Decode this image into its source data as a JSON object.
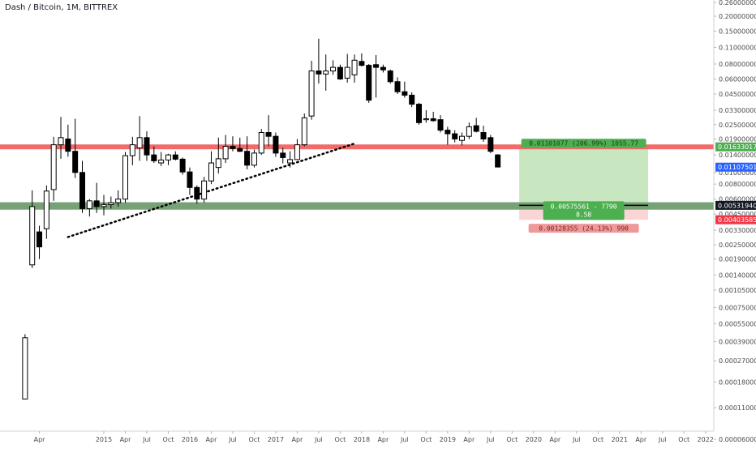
{
  "chart_data": {
    "type": "candlestick",
    "title": "Dash / Bitcoin, 1M, BITTREX",
    "scale": "log",
    "ylim": [
      5.2e-05,
      0.26
    ],
    "y_ticks": [
      "0.26000000",
      "0.20000000",
      "0.15000000",
      "0.11000000",
      "0.08000000",
      "0.06000000",
      "0.04500000",
      "0.03300000",
      "0.02500000",
      "0.01900000",
      "0.01400000",
      "0.01000000",
      "0.00800000",
      "0.00600000",
      "0.00450000",
      "0.00330000",
      "0.00250000",
      "0.00190000",
      "0.00140000",
      "0.00105000",
      "0.00075000",
      "0.00055000",
      "0.00039000",
      "0.00027000",
      "0.00018000",
      "0.00011000",
      "0.00006000"
    ],
    "x_ticks": [
      {
        "label": "Apr",
        "date": "2014-04"
      },
      {
        "label": "2015",
        "date": "2015-01"
      },
      {
        "label": "Apr",
        "date": "2015-04"
      },
      {
        "label": "Jul",
        "date": "2015-07"
      },
      {
        "label": "Oct",
        "date": "2015-10"
      },
      {
        "label": "2016",
        "date": "2016-01"
      },
      {
        "label": "Apr",
        "date": "2016-04"
      },
      {
        "label": "Jul",
        "date": "2016-07"
      },
      {
        "label": "Oct",
        "date": "2016-10"
      },
      {
        "label": "2017",
        "date": "2017-01"
      },
      {
        "label": "Apr",
        "date": "2017-04"
      },
      {
        "label": "Jul",
        "date": "2017-07"
      },
      {
        "label": "Oct",
        "date": "2017-10"
      },
      {
        "label": "2018",
        "date": "2018-01"
      },
      {
        "label": "Apr",
        "date": "2018-04"
      },
      {
        "label": "Jul",
        "date": "2018-07"
      },
      {
        "label": "Oct",
        "date": "2018-10"
      },
      {
        "label": "2019",
        "date": "2019-01"
      },
      {
        "label": "Apr",
        "date": "2019-04"
      },
      {
        "label": "Jul",
        "date": "2019-07"
      },
      {
        "label": "Oct",
        "date": "2019-10"
      },
      {
        "label": "2020",
        "date": "2020-01"
      },
      {
        "label": "Apr",
        "date": "2020-04"
      },
      {
        "label": "Jul",
        "date": "2020-07"
      },
      {
        "label": "Oct",
        "date": "2020-10"
      },
      {
        "label": "2021",
        "date": "2021-01"
      },
      {
        "label": "Apr",
        "date": "2021-04"
      },
      {
        "label": "Jul",
        "date": "2021-07"
      },
      {
        "label": "Oct",
        "date": "2021-10"
      },
      {
        "label": "2022",
        "date": "2022-01"
      }
    ],
    "candles": [
      {
        "date": "2014-02",
        "o": 0.00013,
        "h": 0.00045,
        "l": 0.00013,
        "c": 0.00042
      },
      {
        "date": "2014-03",
        "o": 0.0017,
        "h": 0.0071,
        "l": 0.0016,
        "c": 0.0052
      },
      {
        "date": "2014-04",
        "o": 0.0032,
        "h": 0.0036,
        "l": 0.0019,
        "c": 0.0024
      },
      {
        "date": "2014-05",
        "o": 0.0034,
        "h": 0.0078,
        "l": 0.0028,
        "c": 0.007
      },
      {
        "date": "2014-06",
        "o": 0.0072,
        "h": 0.0198,
        "l": 0.0058,
        "c": 0.017
      },
      {
        "date": "2014-07",
        "o": 0.017,
        "h": 0.029,
        "l": 0.013,
        "c": 0.0195
      },
      {
        "date": "2014-08",
        "o": 0.019,
        "h": 0.025,
        "l": 0.0135,
        "c": 0.015
      },
      {
        "date": "2014-09",
        "o": 0.015,
        "h": 0.028,
        "l": 0.009,
        "c": 0.01
      },
      {
        "date": "2014-10",
        "o": 0.01,
        "h": 0.0125,
        "l": 0.0046,
        "c": 0.005
      },
      {
        "date": "2014-11",
        "o": 0.005,
        "h": 0.006,
        "l": 0.0043,
        "c": 0.0058
      },
      {
        "date": "2014-12",
        "o": 0.0058,
        "h": 0.0082,
        "l": 0.0046,
        "c": 0.0052
      },
      {
        "date": "2015-01",
        "o": 0.0052,
        "h": 0.0065,
        "l": 0.0044,
        "c": 0.0054
      },
      {
        "date": "2015-02",
        "o": 0.0054,
        "h": 0.0063,
        "l": 0.005,
        "c": 0.0056
      },
      {
        "date": "2015-03",
        "o": 0.0056,
        "h": 0.0071,
        "l": 0.0052,
        "c": 0.006
      },
      {
        "date": "2015-04",
        "o": 0.006,
        "h": 0.0148,
        "l": 0.0056,
        "c": 0.0138
      },
      {
        "date": "2015-05",
        "o": 0.0138,
        "h": 0.0198,
        "l": 0.0115,
        "c": 0.017
      },
      {
        "date": "2015-06",
        "o": 0.016,
        "h": 0.0295,
        "l": 0.0125,
        "c": 0.0195
      },
      {
        "date": "2015-07",
        "o": 0.0195,
        "h": 0.022,
        "l": 0.0125,
        "c": 0.014
      },
      {
        "date": "2015-08",
        "o": 0.014,
        "h": 0.0165,
        "l": 0.012,
        "c": 0.0125
      },
      {
        "date": "2015-09",
        "o": 0.012,
        "h": 0.0148,
        "l": 0.0113,
        "c": 0.0127
      },
      {
        "date": "2015-10",
        "o": 0.0127,
        "h": 0.0143,
        "l": 0.0115,
        "c": 0.014
      },
      {
        "date": "2015-11",
        "o": 0.014,
        "h": 0.015,
        "l": 0.0126,
        "c": 0.0129
      },
      {
        "date": "2015-12",
        "o": 0.0129,
        "h": 0.0133,
        "l": 0.0096,
        "c": 0.0101
      },
      {
        "date": "2016-01",
        "o": 0.0101,
        "h": 0.011,
        "l": 0.0065,
        "c": 0.0075
      },
      {
        "date": "2016-02",
        "o": 0.0075,
        "h": 0.0078,
        "l": 0.0055,
        "c": 0.006
      },
      {
        "date": "2016-03",
        "o": 0.006,
        "h": 0.0092,
        "l": 0.0056,
        "c": 0.0085
      },
      {
        "date": "2016-04",
        "o": 0.0085,
        "h": 0.015,
        "l": 0.008,
        "c": 0.012
      },
      {
        "date": "2016-05",
        "o": 0.011,
        "h": 0.0195,
        "l": 0.0098,
        "c": 0.013
      },
      {
        "date": "2016-06",
        "o": 0.013,
        "h": 0.0205,
        "l": 0.012,
        "c": 0.0165
      },
      {
        "date": "2016-07",
        "o": 0.0165,
        "h": 0.02,
        "l": 0.015,
        "c": 0.0158
      },
      {
        "date": "2016-08",
        "o": 0.0158,
        "h": 0.0195,
        "l": 0.0148,
        "c": 0.015
      },
      {
        "date": "2016-09",
        "o": 0.015,
        "h": 0.02,
        "l": 0.0106,
        "c": 0.0115
      },
      {
        "date": "2016-10",
        "o": 0.0115,
        "h": 0.0155,
        "l": 0.011,
        "c": 0.0145
      },
      {
        "date": "2016-11",
        "o": 0.0145,
        "h": 0.023,
        "l": 0.014,
        "c": 0.0215
      },
      {
        "date": "2016-12",
        "o": 0.0215,
        "h": 0.03,
        "l": 0.0165,
        "c": 0.02
      },
      {
        "date": "2017-01",
        "o": 0.02,
        "h": 0.0215,
        "l": 0.0135,
        "c": 0.0145
      },
      {
        "date": "2017-02",
        "o": 0.0145,
        "h": 0.016,
        "l": 0.0119,
        "c": 0.0133
      },
      {
        "date": "2017-03",
        "o": 0.012,
        "h": 0.015,
        "l": 0.011,
        "c": 0.0128
      },
      {
        "date": "2017-04",
        "o": 0.0128,
        "h": 0.019,
        "l": 0.0127,
        "c": 0.017
      },
      {
        "date": "2017-05",
        "o": 0.017,
        "h": 0.031,
        "l": 0.0165,
        "c": 0.0285
      },
      {
        "date": "2017-06",
        "o": 0.0295,
        "h": 0.085,
        "l": 0.0275,
        "c": 0.07
      },
      {
        "date": "2017-07",
        "o": 0.07,
        "h": 0.13,
        "l": 0.055,
        "c": 0.066
      },
      {
        "date": "2017-08",
        "o": 0.066,
        "h": 0.096,
        "l": 0.048,
        "c": 0.07
      },
      {
        "date": "2017-09",
        "o": 0.07,
        "h": 0.086,
        "l": 0.065,
        "c": 0.075
      },
      {
        "date": "2017-10",
        "o": 0.075,
        "h": 0.079,
        "l": 0.059,
        "c": 0.06
      },
      {
        "date": "2017-11",
        "o": 0.061,
        "h": 0.097,
        "l": 0.056,
        "c": 0.075
      },
      {
        "date": "2017-12",
        "o": 0.065,
        "h": 0.096,
        "l": 0.056,
        "c": 0.086
      },
      {
        "date": "2018-01",
        "o": 0.084,
        "h": 0.098,
        "l": 0.076,
        "c": 0.078
      },
      {
        "date": "2018-02",
        "o": 0.078,
        "h": 0.08,
        "l": 0.038,
        "c": 0.04
      },
      {
        "date": "2018-03",
        "o": 0.079,
        "h": 0.095,
        "l": 0.042,
        "c": 0.075
      },
      {
        "date": "2018-04",
        "o": 0.075,
        "h": 0.079,
        "l": 0.068,
        "c": 0.0715
      },
      {
        "date": "2018-05",
        "o": 0.07,
        "h": 0.072,
        "l": 0.055,
        "c": 0.057
      },
      {
        "date": "2018-06",
        "o": 0.057,
        "h": 0.062,
        "l": 0.045,
        "c": 0.047
      },
      {
        "date": "2018-07",
        "o": 0.047,
        "h": 0.057,
        "l": 0.042,
        "c": 0.044
      },
      {
        "date": "2018-08",
        "o": 0.044,
        "h": 0.0465,
        "l": 0.035,
        "c": 0.037
      },
      {
        "date": "2018-09",
        "o": 0.037,
        "h": 0.038,
        "l": 0.025,
        "c": 0.026
      },
      {
        "date": "2018-10",
        "o": 0.0275,
        "h": 0.033,
        "l": 0.026,
        "c": 0.028
      },
      {
        "date": "2018-11",
        "o": 0.028,
        "h": 0.032,
        "l": 0.0265,
        "c": 0.027
      },
      {
        "date": "2018-12",
        "o": 0.0275,
        "h": 0.03,
        "l": 0.0215,
        "c": 0.0225
      },
      {
        "date": "2019-01",
        "o": 0.0225,
        "h": 0.024,
        "l": 0.017,
        "c": 0.021
      },
      {
        "date": "2019-02",
        "o": 0.021,
        "h": 0.0225,
        "l": 0.0178,
        "c": 0.019
      },
      {
        "date": "2019-03",
        "o": 0.0185,
        "h": 0.0215,
        "l": 0.0168,
        "c": 0.02
      },
      {
        "date": "2019-04",
        "o": 0.02,
        "h": 0.026,
        "l": 0.019,
        "c": 0.024
      },
      {
        "date": "2019-05",
        "o": 0.0245,
        "h": 0.0285,
        "l": 0.0215,
        "c": 0.022
      },
      {
        "date": "2019-06",
        "o": 0.0215,
        "h": 0.0245,
        "l": 0.018,
        "c": 0.019
      },
      {
        "date": "2019-07",
        "o": 0.0195,
        "h": 0.0205,
        "l": 0.0145,
        "c": 0.015
      },
      {
        "date": "2019-08",
        "o": 0.014,
        "h": 0.0142,
        "l": 0.011,
        "c": 0.0111
      }
    ],
    "resistance_line": {
      "price": 0.01633017
    },
    "support_zone": {
      "high": 0.00565,
      "low": 0.0049
    },
    "trendline": {
      "from": {
        "date": "2014-08",
        "price": 0.0029
      },
      "to": {
        "date": "2017-12",
        "price": 0.0174
      }
    },
    "position": {
      "type": "long",
      "start": "2019-11",
      "end": "2021-05",
      "entry": 0.0053194,
      "target": 0.01633017,
      "stop": 0.00403585,
      "profit_label": "0.01101077 (206.99%) 1055.77",
      "entry_label_line1": "0.00575561 - 7790",
      "entry_label_line2": "8.58",
      "stop_label": "0.00128355 (24.13%) 990"
    },
    "price_tags": [
      {
        "price": 0.01633017,
        "label": "0.01633017",
        "bg": "#4caf50"
      },
      {
        "price": 0.01107501,
        "label": "0.01107501",
        "bg": "#2962ff"
      },
      {
        "price": 0.0053194,
        "label": "0.00531940",
        "bg": "#131722"
      },
      {
        "price": 0.00403585,
        "label": "0.00403585",
        "bg": "#f23645"
      }
    ],
    "colors": {
      "candle_up": "#ffffff",
      "candle_down": "#000000",
      "resistance": "#f26b6b",
      "support": "#6b9a6b",
      "target_zone": "#c8e6c0",
      "stop_zone": "#f9d5d5",
      "profit_label_bg": "#4caf50",
      "stop_label_bg": "#ef9a9a"
    }
  }
}
